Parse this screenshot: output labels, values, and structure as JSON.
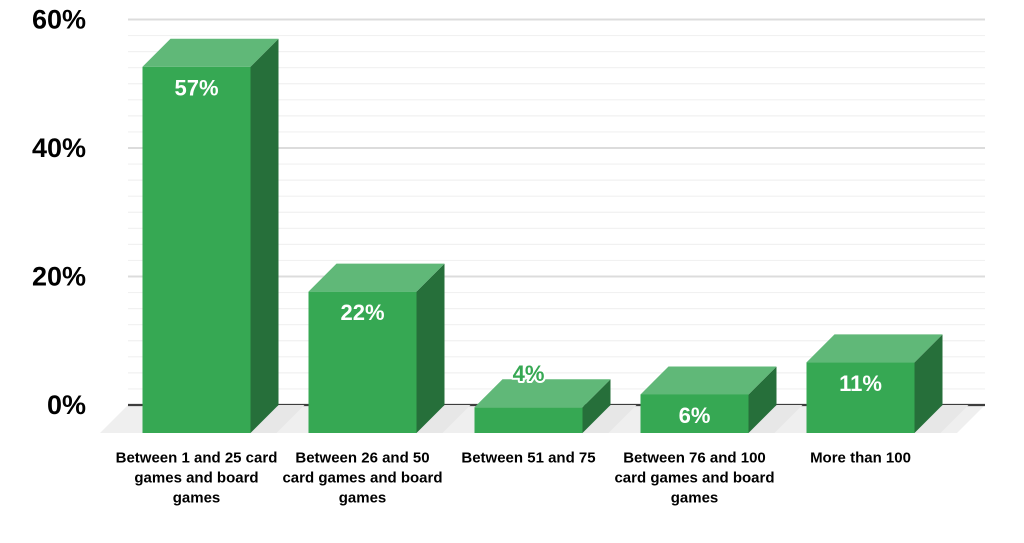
{
  "chart_data": {
    "type": "bar",
    "variant": "3d-column",
    "title": "",
    "xlabel": "",
    "ylabel": "",
    "categories": [
      "Between 1 and 25 card games and board games",
      "Between 26 and 50 card games and board games",
      "Between 51 and 75",
      "Between 76 and 100 card games and board games",
      "More than 100"
    ],
    "category_label_lines": [
      [
        "Between 1 and 25 card",
        "games and board",
        "games"
      ],
      [
        "Between 26 and 50",
        "card games and board",
        "games"
      ],
      [
        "Between 51 and 75"
      ],
      [
        "Between 76 and 100",
        "card games and board",
        "games"
      ],
      [
        "More than 100"
      ]
    ],
    "values": [
      57,
      22,
      4,
      6,
      11
    ],
    "value_labels": [
      "57%",
      "22%",
      "4%",
      "6%",
      "11%"
    ],
    "value_label_placement": [
      "inside",
      "inside",
      "outside",
      "inside",
      "inside"
    ],
    "ylim": [
      0,
      60
    ],
    "y_major_ticks": [
      0,
      20,
      40,
      60
    ],
    "y_tick_labels": [
      "0%",
      "20%",
      "40%",
      "60%"
    ],
    "y_minor_step": 2.5,
    "grid": true,
    "legend": false,
    "colors": {
      "background": "#ffffff",
      "bar_front": "#36a853",
      "bar_top": "#60b878",
      "bar_side": "#266f3a",
      "floor": "#efefef",
      "bar_floor_shadow": "#e7e7e7",
      "baseline": "#3d3d3d",
      "grid_major": "#dcdcdc",
      "grid_minor": "#f1f1f1",
      "axis_text": "#000000",
      "category_text": "#000000",
      "value_label_inside": "#ffffff",
      "value_label_outside": "#36a853",
      "value_label_outline": "#ffffff"
    }
  }
}
